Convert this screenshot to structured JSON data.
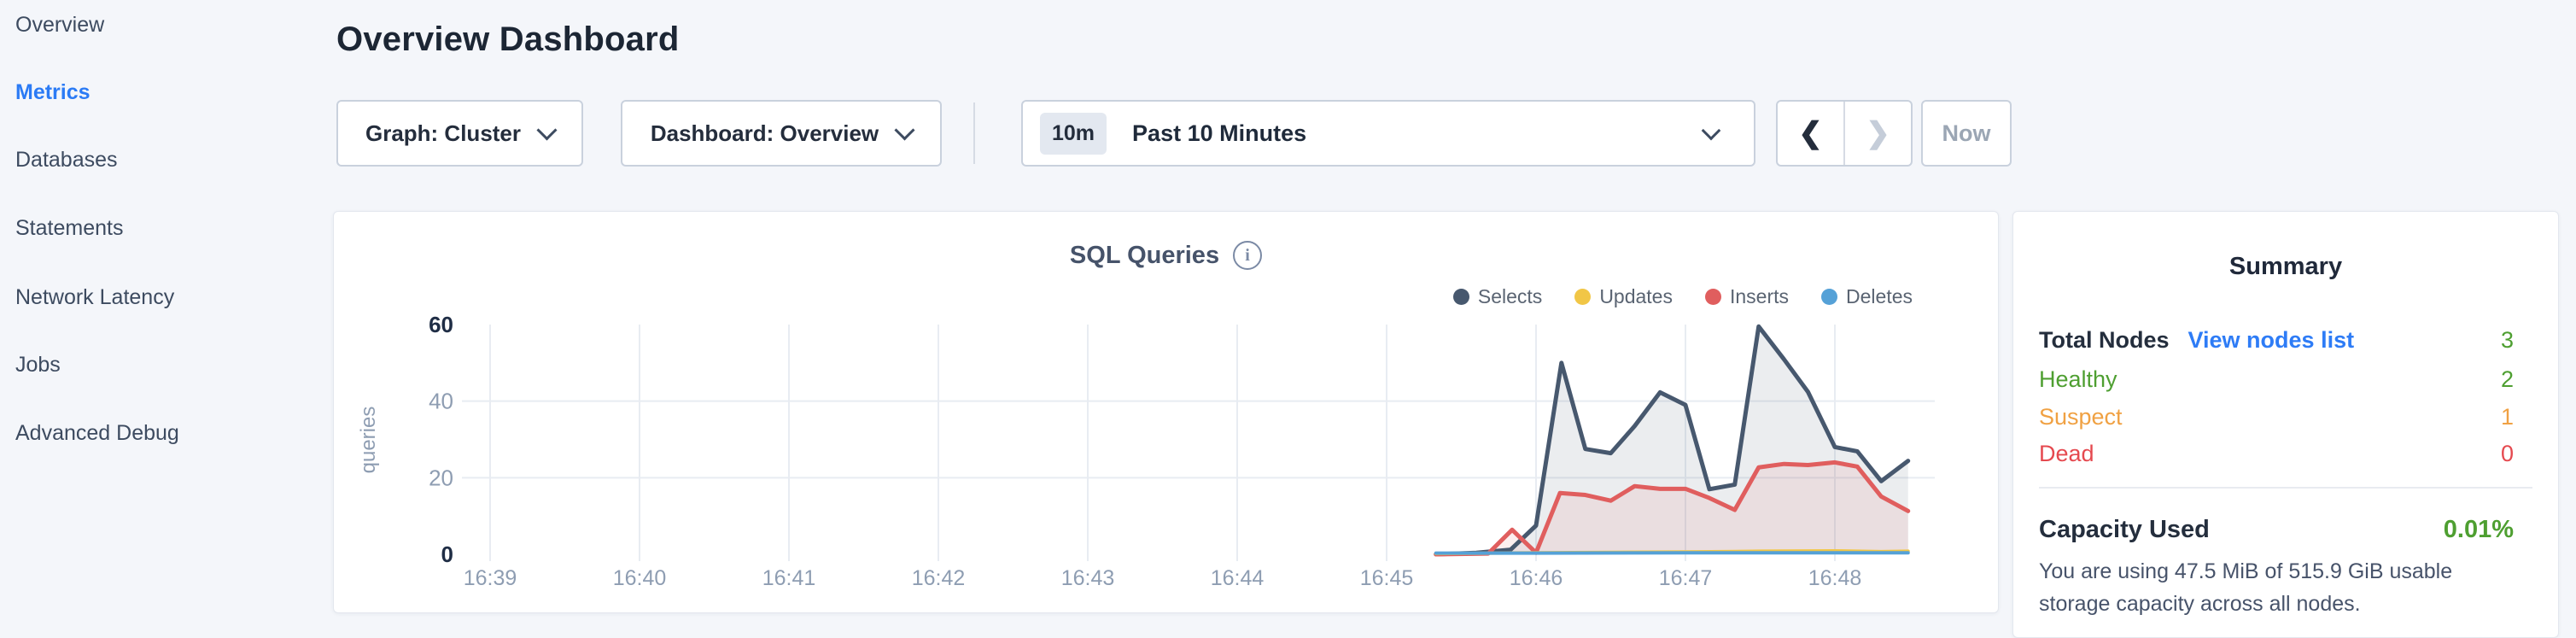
{
  "sidebar": {
    "items": [
      {
        "label": "Overview",
        "active": false
      },
      {
        "label": "Metrics",
        "active": true
      },
      {
        "label": "Databases",
        "active": false
      },
      {
        "label": "Statements",
        "active": false
      },
      {
        "label": "Network Latency",
        "active": false
      },
      {
        "label": "Jobs",
        "active": false
      },
      {
        "label": "Advanced Debug",
        "active": false
      }
    ]
  },
  "header": {
    "title": "Overview Dashboard"
  },
  "toolbar": {
    "graph_selector_label": "Graph: Cluster",
    "dashboard_selector_label": "Dashboard: Overview",
    "time_selector": {
      "badge": "10m",
      "label": "Past 10 Minutes"
    },
    "prev_label": "❮",
    "next_label": "❯",
    "now_label": "Now"
  },
  "chart": {
    "title": "SQL Queries",
    "info_icon_glyph": "i"
  },
  "chart_data": {
    "type": "area",
    "title": "SQL Queries",
    "ylabel": "queries",
    "xlabel": "",
    "x_ticks": [
      "16:39",
      "16:40",
      "16:41",
      "16:42",
      "16:43",
      "16:44",
      "16:45",
      "16:46",
      "16:47",
      "16:48"
    ],
    "x_unit": "minutes after 16:39",
    "y_ticks": [
      0,
      20,
      40,
      60
    ],
    "ylim": [
      0,
      60
    ],
    "grid": true,
    "legend_position": "top-right",
    "series": [
      {
        "name": "Selects",
        "color": "#47586e",
        "fill": "rgba(71,88,110,0.11)",
        "points": [
          [
            6.33,
            0
          ],
          [
            6.6,
            0.4
          ],
          [
            6.83,
            1.2
          ],
          [
            7.0,
            7.5
          ],
          [
            7.17,
            50
          ],
          [
            7.33,
            27.5
          ],
          [
            7.5,
            26.4
          ],
          [
            7.66,
            33.5
          ],
          [
            7.83,
            42.3
          ],
          [
            8.0,
            39
          ],
          [
            8.16,
            17
          ],
          [
            8.33,
            18.2
          ],
          [
            8.49,
            59.5
          ],
          [
            8.66,
            50.9
          ],
          [
            8.82,
            42.4
          ],
          [
            9.0,
            28
          ],
          [
            9.15,
            26.9
          ],
          [
            9.31,
            19.1
          ],
          [
            9.49,
            24.4
          ]
        ]
      },
      {
        "name": "Updates",
        "color": "#f1c646",
        "fill": "none",
        "points": [
          [
            6.33,
            0.2
          ],
          [
            7.0,
            0.4
          ],
          [
            7.5,
            0.5
          ],
          [
            8.0,
            0.6
          ],
          [
            8.5,
            0.8
          ],
          [
            9.0,
            0.9
          ],
          [
            9.31,
            0.7
          ],
          [
            9.49,
            0.8
          ]
        ]
      },
      {
        "name": "Inserts",
        "color": "#e05e5e",
        "fill": "rgba(224,94,94,0.10)",
        "points": [
          [
            6.33,
            0
          ],
          [
            6.68,
            0.2
          ],
          [
            6.84,
            6.4
          ],
          [
            7.0,
            0.4
          ],
          [
            7.16,
            16
          ],
          [
            7.33,
            15.5
          ],
          [
            7.5,
            14
          ],
          [
            7.66,
            17.8
          ],
          [
            7.83,
            17.1
          ],
          [
            8.0,
            17.1
          ],
          [
            8.16,
            14.7
          ],
          [
            8.33,
            11.6
          ],
          [
            8.49,
            22.7
          ],
          [
            8.66,
            23.6
          ],
          [
            8.82,
            23.3
          ],
          [
            9.0,
            24
          ],
          [
            9.15,
            22.9
          ],
          [
            9.31,
            15.1
          ],
          [
            9.49,
            11.3
          ]
        ]
      },
      {
        "name": "Deletes",
        "color": "#55a1d7",
        "fill": "none",
        "points": [
          [
            6.33,
            0.3
          ],
          [
            7.0,
            0.3
          ],
          [
            8.0,
            0.4
          ],
          [
            9.0,
            0.4
          ],
          [
            9.49,
            0.4
          ]
        ]
      }
    ]
  },
  "summary": {
    "title": "Summary",
    "rows": [
      {
        "label": "Total Nodes",
        "link": "View nodes list",
        "value": "3",
        "label_color": "#242e3d",
        "value_color": "#4e9f31",
        "bold": true
      },
      {
        "label": "Healthy",
        "link": "",
        "value": "2",
        "label_color": "#4e9f31",
        "value_color": "#4e9f31",
        "bold": false
      },
      {
        "label": "Suspect",
        "link": "",
        "value": "1",
        "label_color": "#f0a143",
        "value_color": "#f0a143",
        "bold": false
      },
      {
        "label": "Dead",
        "link": "",
        "value": "0",
        "label_color": "#e5494f",
        "value_color": "#e5494f",
        "bold": false
      }
    ],
    "capacity_label": "Capacity Used",
    "capacity_value": "0.01%",
    "capacity_value_color": "#4e9f31",
    "description": "You are using 47.5 MiB of 515.9 GiB usable storage capacity across all nodes."
  },
  "colors": {
    "accent_blue": "#2b7bf5",
    "link_blue": "#2e7cf6",
    "healthy_green": "#4e9f31",
    "suspect_orange": "#f0a143",
    "dead_red": "#e5494f",
    "axis_gray": "#8e9db2",
    "axis_dark": "#1f2d45",
    "grid": "#e8ecf2"
  }
}
